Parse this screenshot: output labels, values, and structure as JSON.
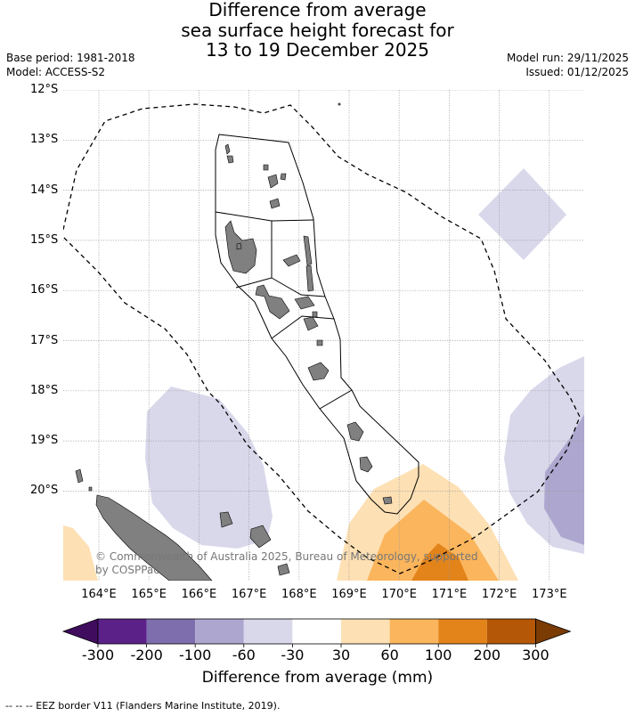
{
  "title_lines": [
    "Difference from average",
    "sea surface height forecast for",
    "13 to 19 December 2025"
  ],
  "base_period": "Base period: 1981-2018",
  "model": "Model: ACCESS-S2",
  "model_run": "Model run: 29/11/2025",
  "issued": "Issued: 01/12/2025",
  "map": {
    "lat_labels": [
      "12°S",
      "13°S",
      "14°S",
      "15°S",
      "16°S",
      "17°S",
      "18°S",
      "19°S",
      "20°S"
    ],
    "lon_labels": [
      "164°E",
      "165°E",
      "166°E",
      "167°E",
      "168°E",
      "169°E",
      "170°E",
      "171°E",
      "172°E",
      "173°E"
    ],
    "copyright_lines": [
      "© Commonwealth of Australia 2025, Bureau of Meteorology, supported",
      "by COSPPac"
    ]
  },
  "colorbar": {
    "ticks": [
      "-300",
      "-200",
      "-100",
      "-60",
      "-30",
      "30",
      "60",
      "100",
      "200",
      "300"
    ],
    "colors": [
      "#3f0c5e",
      "#5b2189",
      "#7f6ead",
      "#ada7cf",
      "#d9d8eb",
      "#ffffff",
      "#fde0b4",
      "#fbb55c",
      "#e3841a",
      "#b45707",
      "#7a3b04"
    ],
    "label": "Difference from average (mm)"
  },
  "footer": "--  --  -- EEZ border V11 (Flanders Marine Institute, 2019)."
}
